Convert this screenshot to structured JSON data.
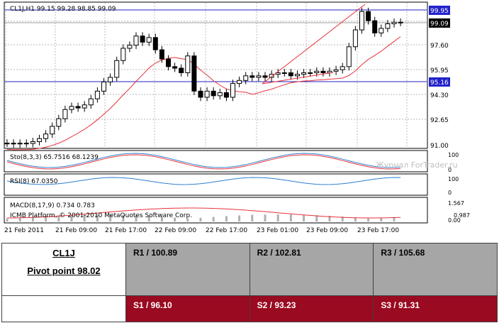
{
  "chart": {
    "header": "CL1J,H1  99.15 99.28 98.85 99.09",
    "watermark": "Журнал ForTrader.ru",
    "copyright": "ICMB Platform, © 2001-2010 MetaQuotes Software Corp.",
    "price_labels": [
      "99.95",
      "99.09",
      "97.60",
      "95.95",
      "95.16",
      "94.30",
      "92.65",
      "91.00"
    ],
    "highlight_levels": {
      "upper": "99.95",
      "current": "99.09",
      "lower": "95.16"
    },
    "time_labels": [
      "21 Feb 2011",
      "21 Feb 09:00",
      "21 Feb 17:00",
      "22 Feb 09:00",
      "22 Feb 17:00",
      "23 Feb 01:00",
      "23 Feb 09:00",
      "23 Feb 17:00"
    ],
    "sto": {
      "label": "Sto(8,3,3) 65.7516 68.1239",
      "scale": [
        "100",
        "0"
      ]
    },
    "rsi": {
      "label": "RSI(8) 67.0350",
      "scale": [
        "100",
        "0"
      ]
    },
    "macd": {
      "label": "MACD(8,17,9) 0.734 0.783",
      "scale": [
        "1.567",
        "0.987",
        "0.00"
      ]
    },
    "colors": {
      "bull": "#ffffff",
      "bear": "#000000",
      "ma": "#e8323c",
      "level_line": "#2020c0",
      "signal": "#e8323c",
      "main_line": "#2d7fd0"
    }
  },
  "pivot": {
    "symbol": "CL1J",
    "pivot_point": "Pivot point 98.02",
    "r1": "R1 / 100.89",
    "r2": "R2 / 102.81",
    "r3": "R3 / 105.68",
    "s1": "S1 / 96.10",
    "s2": "S2 / 93.23",
    "s3": "S3 / 91.31"
  }
}
